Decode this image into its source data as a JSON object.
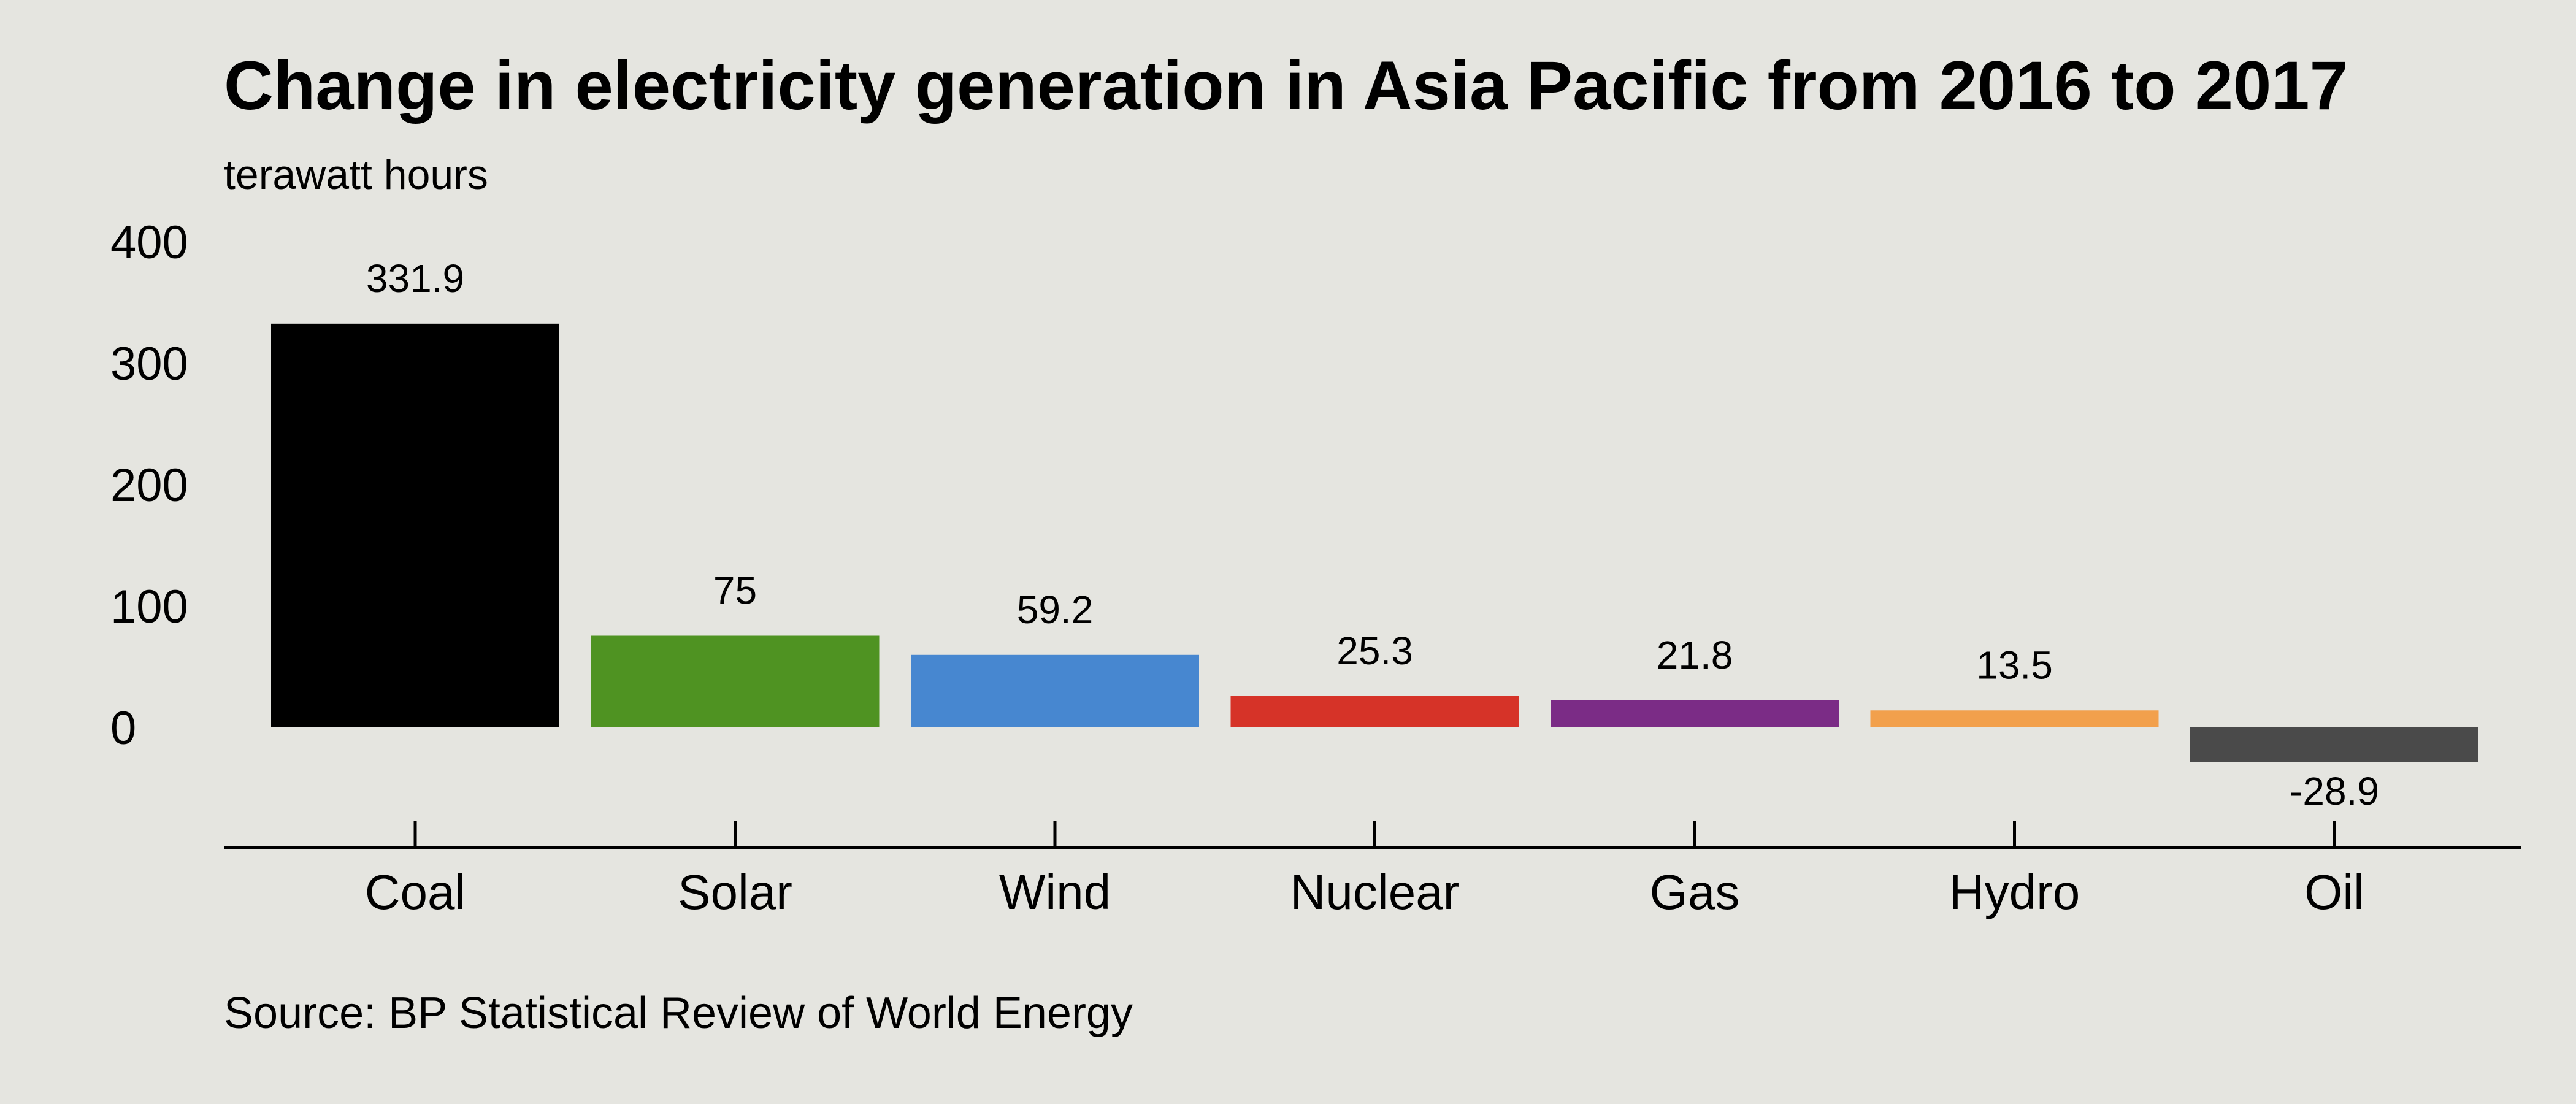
{
  "chart_data": {
    "type": "bar",
    "title": "Change in electricity generation in Asia Pacific from 2016 to 2017",
    "subtitle": "terawatt hours",
    "source": "Source: BP Statistical Review of World Energy",
    "categories": [
      "Coal",
      "Solar",
      "Wind",
      "Nuclear",
      "Gas",
      "Hydro",
      "Oil"
    ],
    "values": [
      331.9,
      75,
      59.2,
      25.3,
      21.8,
      13.5,
      -28.9
    ],
    "data_labels": [
      "331.9",
      "75",
      "59.2",
      "25.3",
      "21.8",
      "13.5",
      "-28.9"
    ],
    "colors": [
      "#000000",
      "#4f9322",
      "#4787d0",
      "#d63328",
      "#7b2c86",
      "#f2a04c",
      "#4a4a4a"
    ],
    "yticks": [
      0,
      100,
      200,
      300,
      400
    ],
    "ytick_labels": [
      "0",
      "100",
      "200",
      "300",
      "400"
    ],
    "ylim": [
      -100,
      400
    ],
    "grid": false,
    "legend": "none"
  }
}
